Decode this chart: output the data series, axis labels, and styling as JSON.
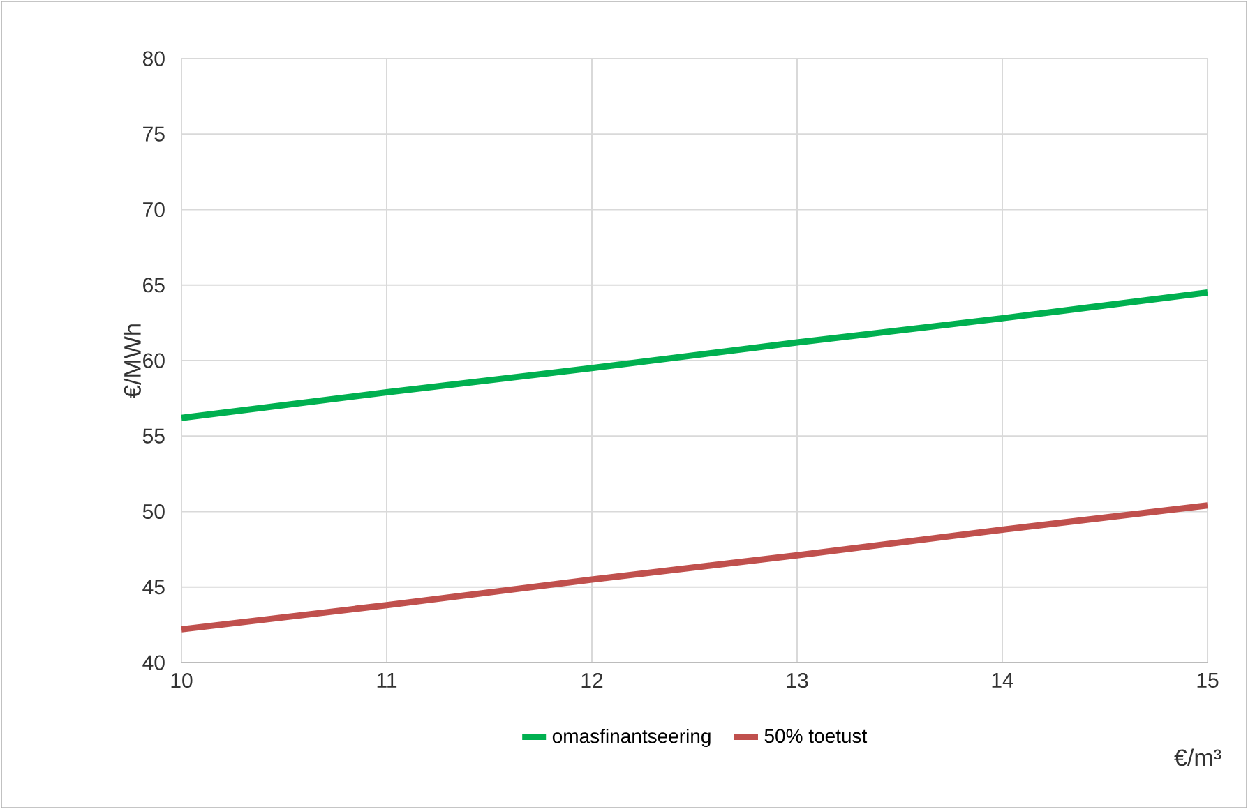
{
  "chart_data": {
    "type": "line",
    "xlabel": "€/m³",
    "ylabel": "€/MWh",
    "x": [
      10,
      11,
      12,
      13,
      14,
      15
    ],
    "series": [
      {
        "name": "omasfinantseering",
        "color": "#00b050",
        "values": [
          56.2,
          57.9,
          59.5,
          61.2,
          62.8,
          64.5
        ]
      },
      {
        "name": "50% toetust",
        "color": "#c0504d",
        "values": [
          42.2,
          43.8,
          45.5,
          47.1,
          48.8,
          50.4
        ]
      }
    ],
    "xlim": [
      10,
      15
    ],
    "xticks": [
      10,
      11,
      12,
      13,
      14,
      15
    ],
    "ylim": [
      40,
      80
    ],
    "yticks": [
      40,
      45,
      50,
      55,
      60,
      65,
      70,
      75,
      80
    ],
    "grid": true,
    "legend": "bottom",
    "marker": "none",
    "line_style": "solid"
  }
}
